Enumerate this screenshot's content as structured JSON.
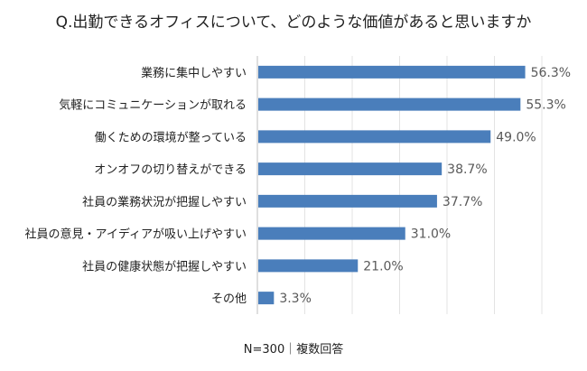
{
  "chart_data": {
    "type": "bar",
    "orientation": "horizontal",
    "title": "Q.出勤できるオフィスについて、どのような価値があると思いますか",
    "categories": [
      "業務に集中しやすい",
      "気軽にコミュニケーションが取れる",
      "働くための環境が整っている",
      "オンオフの切り替えができる",
      "社員の業務状況が把握しやすい",
      "社員の意見・アイディアが吸い上げやすい",
      "社員の健康状態が把握しやすい",
      "その他"
    ],
    "values": [
      56.3,
      55.3,
      49.0,
      38.7,
      37.7,
      31.0,
      21.0,
      3.3
    ],
    "data_labels": [
      "56.3%",
      "55.3%",
      "49.0%",
      "38.7%",
      "37.7%",
      "31.0%",
      "21.0%",
      "3.3%"
    ],
    "xlim": [
      0,
      60
    ],
    "grid": true,
    "bar_color": "#4a7ebb",
    "note": "N=300｜複数回答"
  }
}
